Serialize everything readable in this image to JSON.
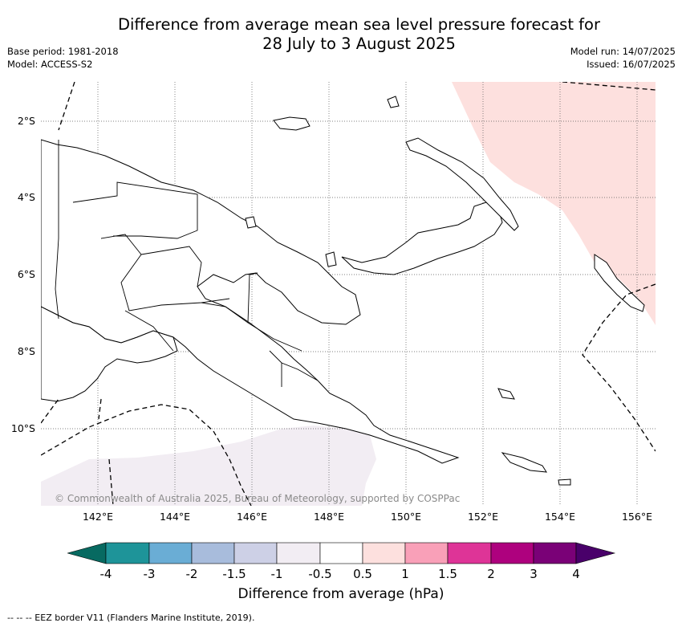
{
  "header": {
    "title_line1": "Difference from average mean sea level pressure forecast for",
    "title_line2": "28 July to 3 August 2025",
    "base_period": "Base period: 1981-2018",
    "model": "Model: ACCESS-S2",
    "model_run": "Model run: 14/07/2025",
    "issued": "Issued: 16/07/2025"
  },
  "map": {
    "lat_ticks": [
      "2°S",
      "4°S",
      "6°S",
      "8°S",
      "10°S"
    ],
    "lon_ticks": [
      "142°E",
      "144°E",
      "146°E",
      "148°E",
      "150°E",
      "152°E",
      "154°E",
      "156°E"
    ],
    "grid": true,
    "copyright": "© Commonwealth of Australia 2025, Bureau of Meteorology, supported by COSPPac",
    "colors": {
      "land": "#ffffff",
      "coast": "#000000",
      "pos_anom": "#fde0de",
      "neg_anom": "#f2edf3"
    }
  },
  "colorbar": {
    "labels": [
      "-4",
      "-3",
      "-2",
      "-1.5",
      "-1",
      "-0.5",
      "0.5",
      "1",
      "1.5",
      "2",
      "3",
      "4"
    ],
    "colors": [
      "#076a61",
      "#1e9499",
      "#6aadd5",
      "#a8bcdc",
      "#cdd0e6",
      "#f2edf3",
      "#ffffff",
      "#fde0de",
      "#f9a0b8",
      "#de3497",
      "#ae017e",
      "#7a0177",
      "#49006a"
    ],
    "title": "Difference from average (hPa)"
  },
  "footnote": "--  --  -- EEZ border V11 (Flanders Marine Institute, 2019)."
}
